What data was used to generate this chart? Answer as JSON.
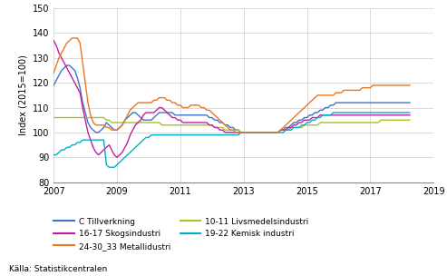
{
  "title": "",
  "ylabel": "Index (2015=100)",
  "source": "Källa: Statistikcentralen",
  "xlim": [
    2007.0,
    2019.0
  ],
  "ylim": [
    80,
    150
  ],
  "yticks": [
    80,
    90,
    100,
    110,
    120,
    130,
    140,
    150
  ],
  "xticks": [
    2007,
    2009,
    2011,
    2013,
    2015,
    2017,
    2019
  ],
  "series": {
    "C Tillverkning": {
      "color": "#4472C4",
      "data": [
        119,
        121,
        123,
        125,
        126,
        127,
        127,
        126,
        125,
        122,
        118,
        112,
        108,
        104,
        102,
        101,
        100,
        100,
        101,
        102,
        104,
        103,
        102,
        101,
        101,
        102,
        103,
        105,
        106,
        107,
        108,
        108,
        107,
        106,
        105,
        105,
        105,
        105,
        106,
        107,
        108,
        108,
        108,
        108,
        108,
        108,
        107,
        107,
        107,
        107,
        107,
        107,
        107,
        107,
        107,
        107,
        107,
        107,
        107,
        106,
        106,
        105,
        105,
        104,
        104,
        103,
        103,
        102,
        102,
        101,
        101,
        100,
        100,
        100,
        100,
        100,
        100,
        100,
        100,
        100,
        100,
        100,
        100,
        100,
        100,
        100,
        101,
        101,
        102,
        102,
        103,
        104,
        104,
        105,
        105,
        106,
        106,
        107,
        107,
        108,
        108,
        109,
        109,
        110,
        110,
        111,
        111,
        112,
        112,
        112,
        112,
        112,
        112,
        112,
        112,
        112,
        112,
        112,
        112,
        112,
        112,
        112,
        112,
        112,
        112,
        112,
        112,
        112,
        112,
        112,
        112,
        112,
        112,
        112,
        112,
        112
      ]
    },
    "10-11 Livsmedelsindustri": {
      "color": "#AABF28",
      "data": [
        106,
        106,
        106,
        106,
        106,
        106,
        106,
        106,
        106,
        106,
        106,
        106,
        106,
        106,
        106,
        106,
        106,
        106,
        106,
        106,
        105,
        105,
        104,
        104,
        104,
        104,
        104,
        104,
        104,
        104,
        104,
        104,
        104,
        104,
        104,
        104,
        104,
        104,
        104,
        104,
        104,
        103,
        103,
        103,
        103,
        103,
        103,
        103,
        103,
        103,
        103,
        103,
        103,
        103,
        103,
        103,
        103,
        103,
        103,
        103,
        103,
        102,
        102,
        102,
        102,
        101,
        101,
        101,
        101,
        101,
        101,
        100,
        100,
        100,
        100,
        100,
        100,
        100,
        100,
        100,
        100,
        100,
        100,
        100,
        100,
        100,
        101,
        101,
        101,
        101,
        102,
        102,
        102,
        102,
        102,
        103,
        103,
        103,
        103,
        103,
        103,
        104,
        104,
        104,
        104,
        104,
        104,
        104,
        104,
        104,
        104,
        104,
        104,
        104,
        104,
        104,
        104,
        104,
        104,
        104,
        104,
        104,
        104,
        104,
        105,
        105,
        105,
        105,
        105,
        105,
        105,
        105,
        105,
        105,
        105,
        105
      ]
    },
    "16-17 Skogsindustri": {
      "color": "#C020A0",
      "data": [
        137,
        135,
        132,
        130,
        128,
        126,
        124,
        122,
        120,
        118,
        116,
        110,
        105,
        100,
        97,
        94,
        92,
        91,
        92,
        93,
        94,
        95,
        93,
        91,
        90,
        91,
        92,
        94,
        96,
        99,
        101,
        103,
        104,
        105,
        107,
        108,
        108,
        108,
        108,
        109,
        110,
        110,
        109,
        108,
        107,
        106,
        106,
        105,
        105,
        104,
        104,
        104,
        104,
        104,
        104,
        104,
        104,
        104,
        104,
        103,
        103,
        102,
        102,
        101,
        101,
        100,
        100,
        100,
        100,
        100,
        100,
        100,
        100,
        100,
        100,
        100,
        100,
        100,
        100,
        100,
        100,
        100,
        100,
        100,
        100,
        100,
        101,
        101,
        101,
        102,
        102,
        103,
        103,
        104,
        104,
        105,
        105,
        105,
        106,
        106,
        106,
        107,
        107,
        107,
        107,
        107,
        107,
        107,
        107,
        107,
        107,
        107,
        107,
        107,
        107,
        107,
        107,
        107,
        107,
        107,
        107,
        107,
        107,
        107,
        107,
        107,
        107,
        107,
        107,
        107,
        107,
        107,
        107,
        107,
        107,
        107
      ]
    },
    "19-22 Kemisk industri": {
      "color": "#00B0C8",
      "data": [
        91,
        91,
        92,
        93,
        93,
        94,
        94,
        95,
        95,
        96,
        96,
        97,
        97,
        97,
        97,
        97,
        97,
        97,
        97,
        97,
        87,
        86,
        86,
        86,
        87,
        88,
        89,
        90,
        91,
        92,
        93,
        94,
        95,
        96,
        97,
        98,
        98,
        99,
        99,
        99,
        99,
        99,
        99,
        99,
        99,
        99,
        99,
        99,
        99,
        99,
        99,
        99,
        99,
        99,
        99,
        99,
        99,
        99,
        99,
        99,
        99,
        99,
        99,
        99,
        99,
        99,
        99,
        99,
        99,
        99,
        99,
        100,
        100,
        100,
        100,
        100,
        100,
        100,
        100,
        100,
        100,
        100,
        100,
        100,
        100,
        100,
        100,
        100,
        101,
        101,
        101,
        102,
        102,
        102,
        103,
        103,
        104,
        104,
        105,
        105,
        106,
        106,
        107,
        107,
        107,
        107,
        108,
        108,
        108,
        108,
        108,
        108,
        108,
        108,
        108,
        108,
        108,
        108,
        108,
        108,
        108,
        108,
        108,
        108,
        108,
        108,
        108,
        108,
        108,
        108,
        108,
        108,
        108,
        108,
        108,
        108
      ]
    },
    "24-30_33 Metallidustri": {
      "color": "#E87722",
      "data": [
        124,
        127,
        130,
        132,
        134,
        136,
        137,
        138,
        138,
        138,
        136,
        128,
        120,
        112,
        107,
        104,
        103,
        103,
        103,
        103,
        102,
        102,
        101,
        101,
        101,
        102,
        103,
        105,
        107,
        109,
        110,
        111,
        112,
        112,
        112,
        112,
        112,
        112,
        113,
        113,
        114,
        114,
        114,
        113,
        113,
        112,
        112,
        111,
        111,
        110,
        110,
        110,
        111,
        111,
        111,
        111,
        110,
        110,
        109,
        109,
        108,
        107,
        106,
        105,
        104,
        103,
        102,
        101,
        101,
        100,
        100,
        100,
        100,
        100,
        100,
        100,
        100,
        100,
        100,
        100,
        100,
        100,
        100,
        100,
        100,
        100,
        101,
        102,
        103,
        104,
        105,
        106,
        107,
        108,
        109,
        110,
        111,
        112,
        113,
        114,
        115,
        115,
        115,
        115,
        115,
        115,
        115,
        116,
        116,
        116,
        117,
        117,
        117,
        117,
        117,
        117,
        117,
        118,
        118,
        118,
        118,
        119,
        119,
        119,
        119,
        119,
        119,
        119,
        119,
        119,
        119,
        119,
        119,
        119,
        119,
        119
      ]
    }
  }
}
